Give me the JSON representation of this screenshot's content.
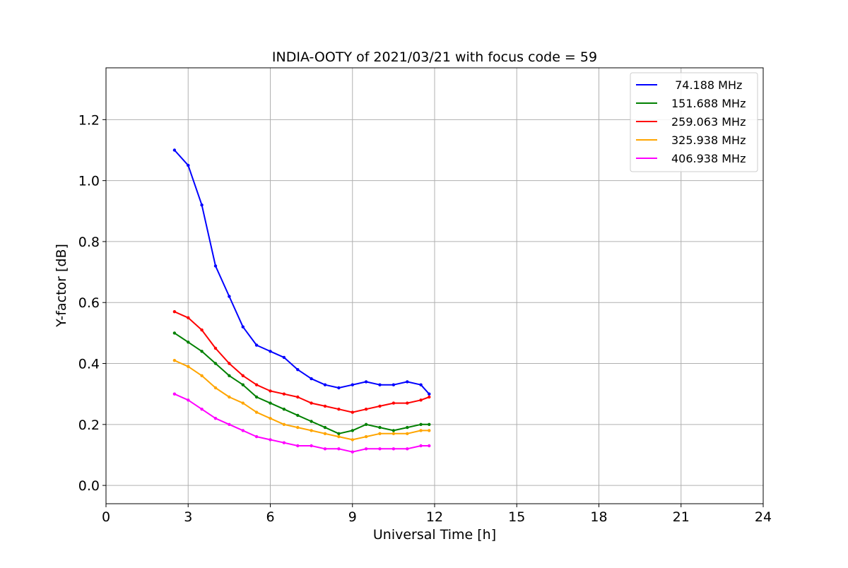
{
  "chart_data": {
    "type": "line",
    "title": "INDIA-OOTY of 2021/03/21 with focus code = 59",
    "xlabel": "Universal Time [h]",
    "ylabel": "Y-factor [dB]",
    "xlim": [
      0,
      24
    ],
    "ylim": [
      -0.06,
      1.37
    ],
    "xticks": [
      0,
      3,
      6,
      9,
      12,
      15,
      18,
      21,
      24
    ],
    "xtick_labels": [
      "0",
      "3",
      "6",
      "9",
      "12",
      "15",
      "18",
      "21",
      "24"
    ],
    "yticks": [
      0.0,
      0.2,
      0.4,
      0.6,
      0.8,
      1.0,
      1.2
    ],
    "ytick_labels": [
      "0.0",
      "0.2",
      "0.4",
      "0.6",
      "0.8",
      "1.0",
      "1.2"
    ],
    "grid": true,
    "legend_position": "top-right",
    "x": [
      2.5,
      3.0,
      3.5,
      4.0,
      4.5,
      5.0,
      5.5,
      6.0,
      6.5,
      7.0,
      7.5,
      8.0,
      8.5,
      9.0,
      9.5,
      10.0,
      10.5,
      11.0,
      11.5,
      11.8
    ],
    "series": [
      {
        "name": " 74.188 MHz",
        "color": "#0000ff",
        "values": [
          1.1,
          1.05,
          0.92,
          0.72,
          0.62,
          0.52,
          0.46,
          0.44,
          0.42,
          0.38,
          0.35,
          0.33,
          0.32,
          0.33,
          0.34,
          0.33,
          0.33,
          0.34,
          0.33,
          0.3
        ]
      },
      {
        "name": "151.688 MHz",
        "color": "#008000",
        "values": [
          0.5,
          0.47,
          0.44,
          0.4,
          0.36,
          0.33,
          0.29,
          0.27,
          0.25,
          0.23,
          0.21,
          0.19,
          0.17,
          0.18,
          0.2,
          0.19,
          0.18,
          0.19,
          0.2,
          0.2
        ]
      },
      {
        "name": "259.063 MHz",
        "color": "#ff0000",
        "values": [
          0.57,
          0.55,
          0.51,
          0.45,
          0.4,
          0.36,
          0.33,
          0.31,
          0.3,
          0.29,
          0.27,
          0.26,
          0.25,
          0.24,
          0.25,
          0.26,
          0.27,
          0.27,
          0.28,
          0.29
        ]
      },
      {
        "name": "325.938 MHz",
        "color": "#ffa500",
        "values": [
          0.41,
          0.39,
          0.36,
          0.32,
          0.29,
          0.27,
          0.24,
          0.22,
          0.2,
          0.19,
          0.18,
          0.17,
          0.16,
          0.15,
          0.16,
          0.17,
          0.17,
          0.17,
          0.18,
          0.18
        ]
      },
      {
        "name": "406.938 MHz",
        "color": "#ff00ff",
        "values": [
          0.3,
          0.28,
          0.25,
          0.22,
          0.2,
          0.18,
          0.16,
          0.15,
          0.14,
          0.13,
          0.13,
          0.12,
          0.12,
          0.11,
          0.12,
          0.12,
          0.12,
          0.12,
          0.13,
          0.13
        ]
      }
    ]
  }
}
